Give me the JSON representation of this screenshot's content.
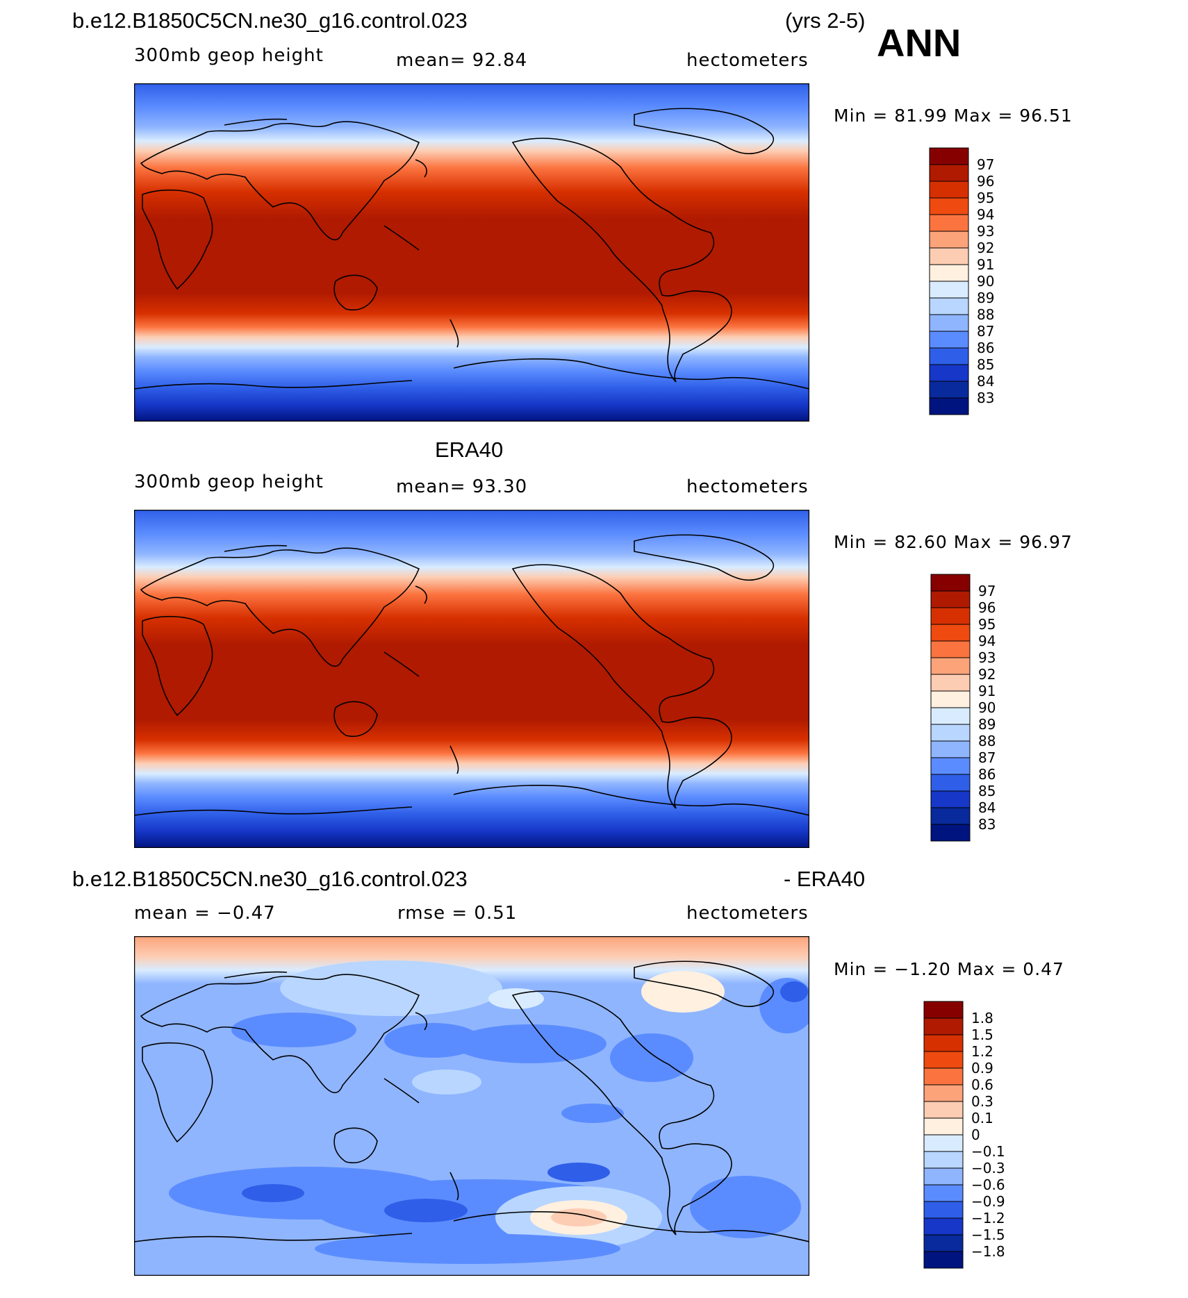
{
  "header": {
    "season": "ANN"
  },
  "panels": [
    {
      "id": "model",
      "title_left": "b.e12.B1850C5CN.ne30_g16.control.023",
      "title_right": "(yrs 2-5)",
      "variable": "300mb  geop  height",
      "mean_text": "mean=   92.84",
      "units": "hectometers",
      "minmax_text": "Min =   81.99  Max =   96.51",
      "colorbar": {
        "labels": [
          "97",
          "96",
          "95",
          "94",
          "93",
          "92",
          "91",
          "90",
          "89",
          "88",
          "87",
          "86",
          "85",
          "84",
          "83"
        ],
        "colors": [
          "#870000",
          "#b01a00",
          "#d73000",
          "#ef4a10",
          "#fb7440",
          "#fca37a",
          "#fdcdb3",
          "#fff0e0",
          "#d9ecff",
          "#b8d6ff",
          "#8fb5ff",
          "#5b8cff",
          "#2f5fe8",
          "#1637c8",
          "#082a9c",
          "#001480"
        ]
      }
    },
    {
      "id": "obs",
      "title_left": "ERA40",
      "variable": "300mb  geop  height",
      "mean_text": "mean=   93.30",
      "units": "hectometers",
      "minmax_text": "Min =   82.60  Max =   96.97",
      "colorbar": {
        "labels": [
          "97",
          "96",
          "95",
          "94",
          "93",
          "92",
          "91",
          "90",
          "89",
          "88",
          "87",
          "86",
          "85",
          "84",
          "83"
        ],
        "colors": [
          "#870000",
          "#b01a00",
          "#d73000",
          "#ef4a10",
          "#fb7440",
          "#fca37a",
          "#fdcdb3",
          "#fff0e0",
          "#d9ecff",
          "#b8d6ff",
          "#8fb5ff",
          "#5b8cff",
          "#2f5fe8",
          "#1637c8",
          "#082a9c",
          "#001480"
        ]
      }
    },
    {
      "id": "diff",
      "title_left": "b.e12.B1850C5CN.ne30_g16.control.023",
      "title_right": "- ERA40",
      "mean_text": "mean =   −0.47",
      "rmse_text": "rmse =    0.51",
      "units": "hectometers",
      "minmax_text": "Min =   −1.20  Max =    0.47",
      "colorbar": {
        "labels": [
          "1.8",
          "1.5",
          "1.2",
          "0.9",
          "0.6",
          "0.3",
          "0.1",
          "0",
          "−0.1",
          "−0.3",
          "−0.6",
          "−0.9",
          "−1.2",
          "−1.5",
          "−1.8"
        ],
        "colors": [
          "#870000",
          "#b01a00",
          "#d73000",
          "#ef4a10",
          "#fb7440",
          "#fca37a",
          "#fdcdb3",
          "#fff0e0",
          "#d9ecff",
          "#b8d6ff",
          "#8fb5ff",
          "#5b8cff",
          "#2f5fe8",
          "#1637c8",
          "#082a9c",
          "#001480"
        ]
      }
    }
  ]
}
